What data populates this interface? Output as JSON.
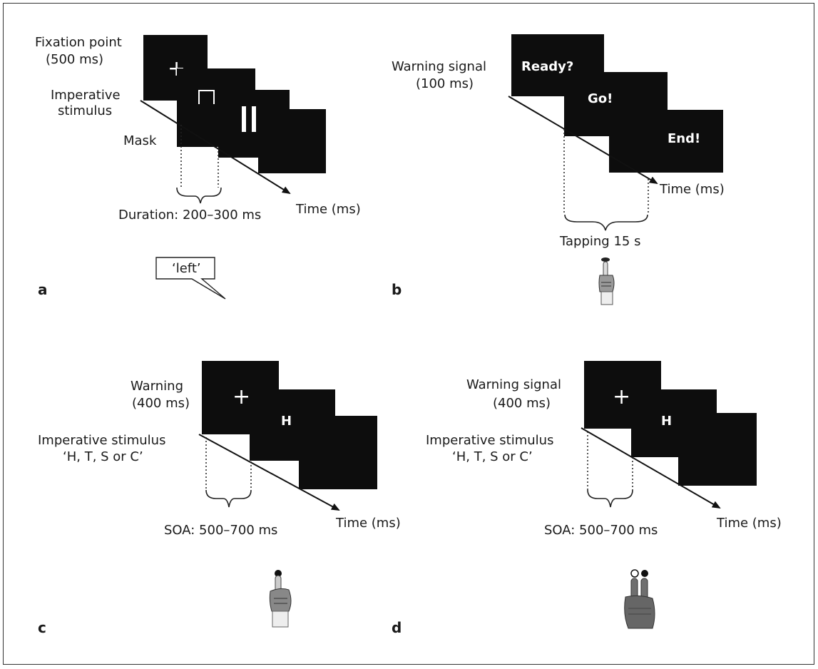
{
  "panels": {
    "a": {
      "letter": "a",
      "fixation": "Fixation point",
      "fixation_dur": "(500 ms)",
      "imperative": "Imperative",
      "stimulus": "stimulus",
      "mask": "Mask",
      "duration": "Duration: 200–300 ms",
      "time": "Time (ms)",
      "speech": "‘left’",
      "plus": "+"
    },
    "b": {
      "letter": "b",
      "warning": "Warning signal",
      "warning_dur": "(100 ms)",
      "ready": "Ready?",
      "go": "Go!",
      "end": "End!",
      "time": "Time (ms)",
      "tapping": "Tapping 15 s"
    },
    "c": {
      "letter": "c",
      "warning": "Warning",
      "warning_dur": "(400 ms)",
      "imperative": "Imperative stimulus",
      "options": "‘H, T, S or C’",
      "plus": "+",
      "letter_h": "H",
      "soa": "SOA: 500–700 ms",
      "time": "Time (ms)"
    },
    "d": {
      "letter": "d",
      "warning": "Warning signal",
      "warning_dur": "(400 ms)",
      "imperative": "Imperative stimulus",
      "options": "‘H, T, S or C’",
      "plus": "+",
      "letter_h": "H",
      "soa": "SOA: 500–700 ms",
      "time": "Time (ms)"
    }
  }
}
